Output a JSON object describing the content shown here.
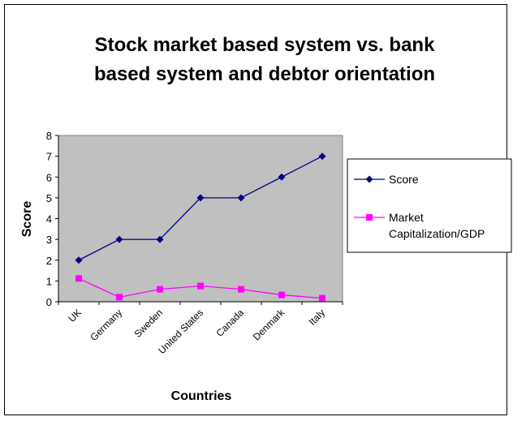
{
  "chart_data": {
    "type": "line",
    "title_lines": [
      "Stock market based system vs. bank",
      "based system and debtor orientation"
    ],
    "xlabel": "Countries",
    "ylabel": "Score",
    "categories": [
      "UK",
      "Germany",
      "Sweden",
      "United States",
      "Canada",
      "Denmark",
      "Italy"
    ],
    "ylim": [
      0,
      8
    ],
    "yticks": [
      0,
      1,
      2,
      3,
      4,
      5,
      6,
      7,
      8
    ],
    "grid": false,
    "legend_position": "right",
    "plot_background": "#C0C0C0",
    "series": [
      {
        "name": "Score",
        "legend_lines": [
          "Score"
        ],
        "color": "#000080",
        "marker": "diamond",
        "values": [
          2,
          3,
          3,
          5,
          5,
          6,
          7
        ]
      },
      {
        "name": "Market Capitalization/GDP",
        "legend_lines": [
          "Market",
          "Capitalization/GDP"
        ],
        "color": "#FF00FF",
        "marker": "square",
        "values": [
          1.12,
          0.22,
          0.6,
          0.76,
          0.6,
          0.33,
          0.17
        ]
      }
    ]
  }
}
